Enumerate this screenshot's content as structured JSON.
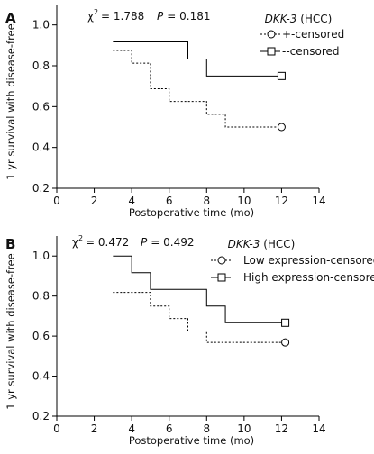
{
  "chart_data": [
    {
      "type": "line",
      "panel": "A",
      "stat_chi": "χ² = 1.788",
      "stat_chi_symbol": "χ",
      "stat_chi_exp": "2",
      "stat_chi_value": "= 1.788",
      "stat_p_symbol": "P",
      "stat_p_value": "= 0.181",
      "legend_title_gene": "DKK-3",
      "legend_title_suffix": "(HCC)",
      "xlabel": "Postoperative time (mo)",
      "ylabel": "1 yr survival with disease-free",
      "xlim": [
        0,
        14
      ],
      "ylim": [
        0.2,
        1.1
      ],
      "xticks": [
        0,
        2,
        4,
        6,
        8,
        10,
        12,
        14
      ],
      "yticks": [
        0.2,
        0.4,
        0.6,
        0.8,
        1.0
      ],
      "ytick_labels": [
        "0.2",
        "0.4",
        "0.6",
        "0.8",
        "1.0"
      ],
      "series": [
        {
          "name": "+-censored",
          "line": "dotted",
          "marker": "circle",
          "steps": [
            [
              3,
              0.875
            ],
            [
              4,
              0.8125
            ],
            [
              5,
              0.6875
            ],
            [
              6,
              0.625
            ],
            [
              8,
              0.5625
            ],
            [
              9,
              0.5
            ],
            [
              12,
              0.5
            ]
          ],
          "censor": [
            12,
            0.5
          ]
        },
        {
          "name": "--censored",
          "line": "solid",
          "marker": "square",
          "steps": [
            [
              3,
              0.9167
            ],
            [
              7,
              0.8333
            ],
            [
              8,
              0.75
            ],
            [
              12,
              0.75
            ]
          ],
          "censor": [
            12,
            0.75
          ]
        }
      ]
    },
    {
      "type": "line",
      "panel": "B",
      "stat_chi_symbol": "χ",
      "stat_chi_exp": "2",
      "stat_chi_value": "= 0.472",
      "stat_p_symbol": "P",
      "stat_p_value": "= 0.492",
      "legend_title_gene": "DKK-3",
      "legend_title_suffix": "(HCC)",
      "xlabel": "Postoperative time (mo)",
      "ylabel": "1 yr survival with disease-free",
      "xlim": [
        0,
        14
      ],
      "ylim": [
        0.2,
        1.1
      ],
      "xticks": [
        0,
        2,
        4,
        6,
        8,
        10,
        12,
        14
      ],
      "yticks": [
        0.2,
        0.4,
        0.6,
        0.8,
        1.0
      ],
      "ytick_labels": [
        "0.2",
        "0.4",
        "0.6",
        "0.8",
        "1.0"
      ],
      "series": [
        {
          "name": "Low expression-censored",
          "line": "dotted",
          "marker": "circle",
          "steps": [
            [
              3,
              0.8182
            ],
            [
              5,
              0.75
            ],
            [
              6,
              0.6875
            ],
            [
              7,
              0.625
            ],
            [
              8,
              0.5682
            ],
            [
              12.2,
              0.5682
            ]
          ],
          "censor": [
            12.2,
            0.5682
          ]
        },
        {
          "name": "High expression-censored",
          "line": "solid",
          "marker": "square",
          "steps": [
            [
              3,
              1.0
            ],
            [
              4,
              0.9167
            ],
            [
              5,
              0.8333
            ],
            [
              8,
              0.75
            ],
            [
              9,
              0.6667
            ],
            [
              12.2,
              0.6667
            ]
          ],
          "censor": [
            12.2,
            0.6667
          ]
        }
      ]
    }
  ]
}
